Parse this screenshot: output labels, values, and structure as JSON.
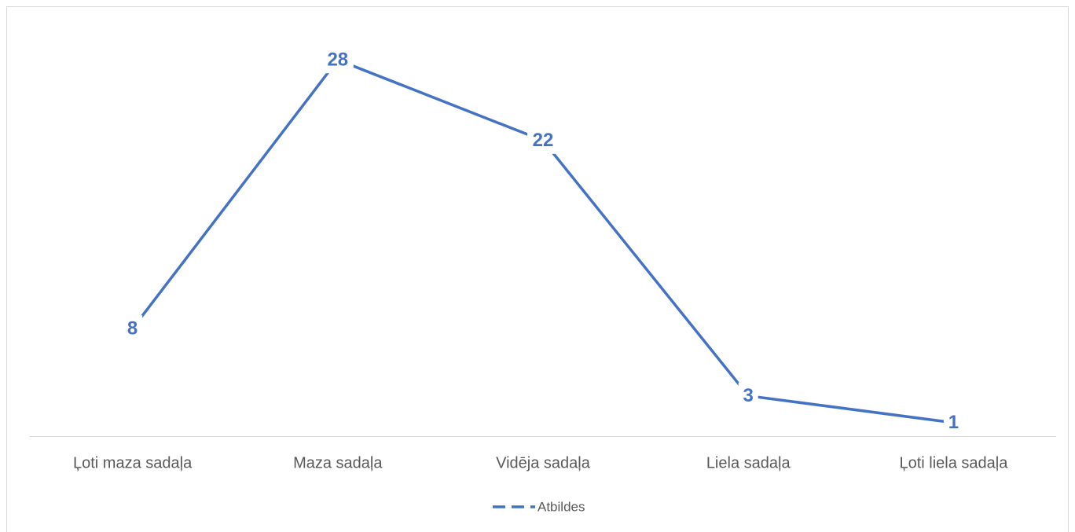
{
  "chart_data": {
    "type": "line",
    "categories": [
      "Ļoti maza sadaļa",
      "Maza sadaļa",
      "Vidēja sadaļa",
      "Liela sadaļa",
      "Ļoti liela sadaļa"
    ],
    "series": [
      {
        "name": "Atbildes",
        "color": "#4472c4",
        "values": [
          8,
          28,
          22,
          3,
          1
        ]
      }
    ],
    "ylim": [
      0,
      30
    ],
    "legend": "bottom"
  }
}
